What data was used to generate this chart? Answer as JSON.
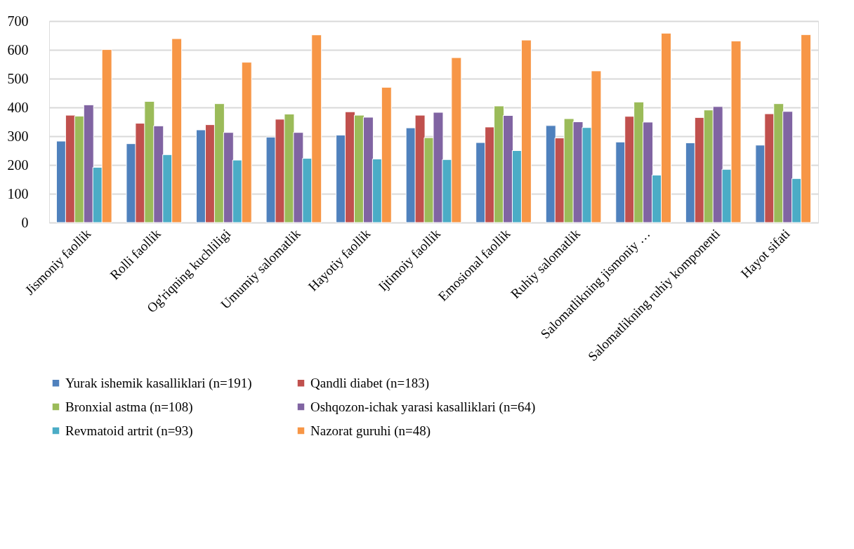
{
  "chart_data": {
    "type": "bar",
    "categories": [
      "Jismoniy faollik",
      "Rolli faollik",
      "Og'riqning kuchliligi",
      "Umumiy salomatlik",
      "Hayotiy faollik",
      "Ijtimoiy faollik",
      "Emosional faollik",
      "Ruhiy salomatlik",
      "Salomatlikning jismoniy …",
      "Salomatlikning ruhiy komponenti",
      "Hayot sifati"
    ],
    "series": [
      {
        "name": "Yurak ishemik kasalliklari (n=191)",
        "color": "#4f81bd",
        "values": [
          283,
          274,
          322,
          297,
          304,
          329,
          278,
          337,
          280,
          277,
          269
        ]
      },
      {
        "name": "Qandli diabet (n=183)",
        "color": "#c0504d",
        "values": [
          373,
          345,
          340,
          359,
          385,
          373,
          332,
          294,
          369,
          365,
          378
        ]
      },
      {
        "name": "Bronxial astma (n=108)",
        "color": "#9bbb59",
        "values": [
          370,
          421,
          413,
          377,
          373,
          295,
          405,
          361,
          419,
          391,
          413
        ]
      },
      {
        "name": "Oshqozon-ichak yarasi kasalliklari (n=64)",
        "color": "#8064a2",
        "values": [
          409,
          336,
          313,
          313,
          366,
          383,
          372,
          350,
          349,
          403,
          386
        ]
      },
      {
        "name": "Revmatoid artrit (n=93)",
        "color": "#4bacc6",
        "values": [
          192,
          236,
          217,
          223,
          221,
          219,
          250,
          330,
          165,
          185,
          153
        ]
      },
      {
        "name": "Nazorat guruhi (n=48)",
        "color": "#f79646",
        "values": [
          601,
          639,
          557,
          652,
          470,
          573,
          634,
          527,
          658,
          631,
          653
        ]
      }
    ],
    "ylim": [
      0,
      700
    ],
    "yticks": [
      0,
      100,
      200,
      300,
      400,
      500,
      600,
      700
    ],
    "grid": "y",
    "legend": "bottom"
  }
}
